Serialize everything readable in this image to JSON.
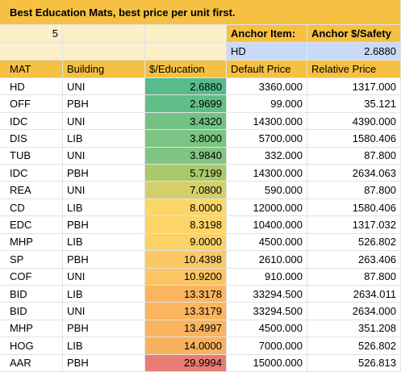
{
  "title": "Best Education Mats, best price per unit first.",
  "setup": {
    "count": "5",
    "anchor_item_label": "Anchor Item:",
    "anchor_price_label": "Anchor $/Safety",
    "anchor_item": "HD",
    "anchor_price": "2.6880"
  },
  "table": {
    "columns": [
      "MAT",
      "Building",
      "$/Education",
      "Default Price",
      "Relative Price"
    ],
    "rows": [
      [
        "HD",
        "UNI",
        "2.6880",
        "3360.000",
        "1317.000"
      ],
      [
        "OFF",
        "PBH",
        "2.9699",
        "99.000",
        "35.121"
      ],
      [
        "IDC",
        "UNI",
        "3.4320",
        "14300.000",
        "4390.000"
      ],
      [
        "DIS",
        "LIB",
        "3.8000",
        "5700.000",
        "1580.406"
      ],
      [
        "TUB",
        "UNI",
        "3.9840",
        "332.000",
        "87.800"
      ],
      [
        "IDC",
        "PBH",
        "5.7199",
        "14300.000",
        "2634.063"
      ],
      [
        "REA",
        "UNI",
        "7.0800",
        "590.000",
        "87.800"
      ],
      [
        "CD",
        "LIB",
        "8.0000",
        "12000.000",
        "1580.406"
      ],
      [
        "EDC",
        "PBH",
        "8.3198",
        "10400.000",
        "1317.032"
      ],
      [
        "MHP",
        "LIB",
        "9.0000",
        "4500.000",
        "526.802"
      ],
      [
        "SP",
        "PBH",
        "10.4398",
        "2610.000",
        "263.406"
      ],
      [
        "COF",
        "UNI",
        "10.9200",
        "910.000",
        "87.800"
      ],
      [
        "BID",
        "LIB",
        "13.3178",
        "33294.500",
        "2634.011"
      ],
      [
        "BID",
        "UNI",
        "13.3179",
        "33294.500",
        "2634.000"
      ],
      [
        "MHP",
        "PBH",
        "13.4997",
        "4500.000",
        "351.208"
      ],
      [
        "HOG",
        "LIB",
        "14.0000",
        "7000.000",
        "526.802"
      ],
      [
        "AAR",
        "PBH",
        "29.9994",
        "15000.000",
        "526.813"
      ]
    ],
    "rate_colors": [
      "#57bb8a",
      "#62be88",
      "#73c285",
      "#7bc483",
      "#80c682",
      "#aac96a",
      "#d5cf6b",
      "#fdd668",
      "#fdd567",
      "#fcd166",
      "#fcc864",
      "#fcc563",
      "#fbb55e",
      "#fbb55e",
      "#fbb45e",
      "#fab15d",
      "#e67c73"
    ]
  }
}
